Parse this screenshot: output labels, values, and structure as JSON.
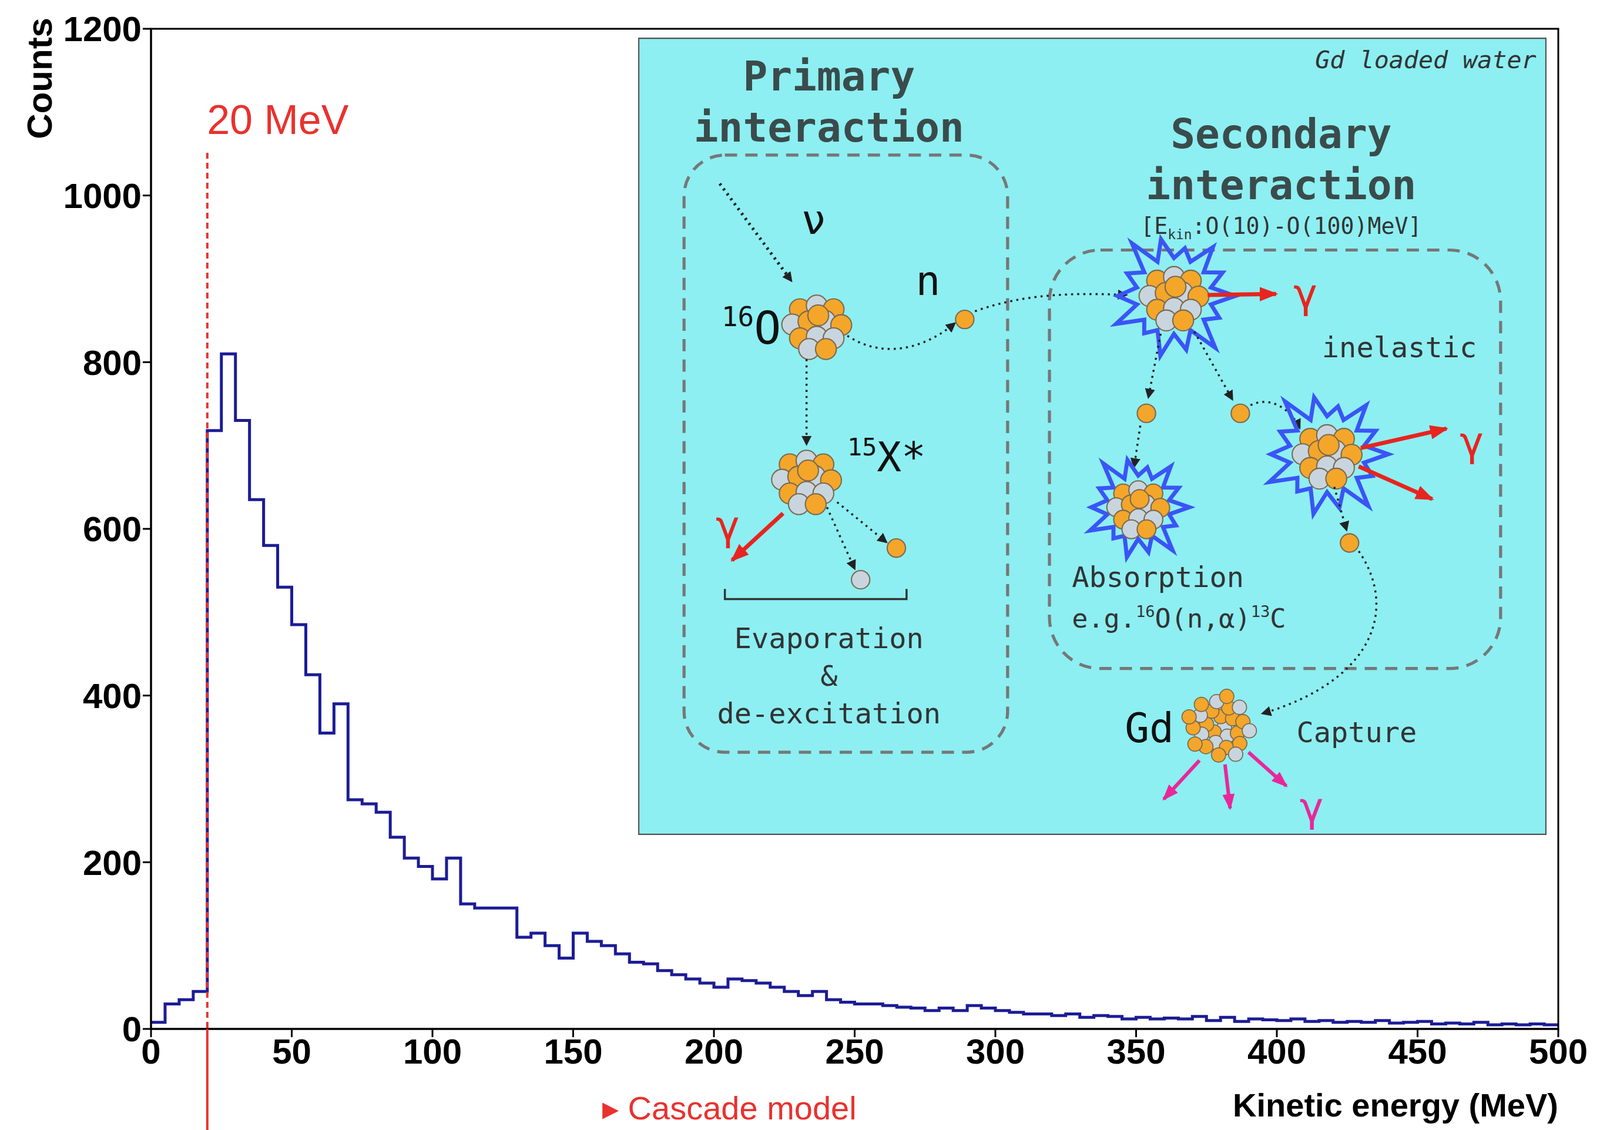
{
  "chart_data": {
    "type": "histogram",
    "xlabel": "Kinetic energy (MeV)",
    "ylabel": "Counts",
    "color": "#1c1c96",
    "grid": false,
    "bins": [
      0,
      5,
      10,
      15,
      20,
      25,
      30,
      35,
      40,
      45,
      50,
      55,
      60,
      65,
      70,
      75,
      80,
      85,
      90,
      95,
      100,
      105,
      110,
      115,
      120,
      125,
      130,
      135,
      140,
      145,
      150,
      155,
      160,
      165,
      170,
      175,
      180,
      185,
      190,
      195,
      200,
      205,
      210,
      215,
      220,
      225,
      230,
      235,
      240,
      245,
      250,
      255,
      260,
      265,
      270,
      275,
      280,
      285,
      290,
      295,
      300,
      305,
      310,
      315,
      320,
      325,
      330,
      335,
      340,
      345,
      350,
      355,
      360,
      365,
      370,
      375,
      380,
      385,
      390,
      395,
      400,
      405,
      410,
      415,
      420,
      425,
      430,
      435,
      440,
      445,
      450,
      455,
      460,
      465,
      470,
      475,
      480,
      485,
      490,
      495,
      500
    ],
    "values": [
      8,
      30,
      35,
      45,
      718,
      810,
      730,
      635,
      580,
      530,
      485,
      425,
      355,
      390,
      275,
      270,
      260,
      230,
      205,
      195,
      180,
      205,
      150,
      145,
      145,
      145,
      110,
      115,
      100,
      85,
      115,
      105,
      100,
      90,
      80,
      78,
      70,
      65,
      60,
      55,
      50,
      60,
      58,
      55,
      50,
      45,
      40,
      45,
      35,
      32,
      30,
      30,
      28,
      26,
      25,
      22,
      25,
      22,
      28,
      25,
      22,
      20,
      18,
      18,
      16,
      18,
      14,
      16,
      15,
      12,
      14,
      12,
      13,
      12,
      15,
      10,
      14,
      9,
      12,
      11,
      10,
      12,
      9,
      10,
      8,
      9,
      8,
      10,
      7,
      8,
      9,
      6,
      7,
      6,
      8,
      5,
      6,
      5,
      6,
      5
    ],
    "xlim": [
      0,
      500
    ],
    "ylim": [
      0,
      1200
    ],
    "xticks": [
      0,
      50,
      100,
      150,
      200,
      250,
      300,
      350,
      400,
      450,
      500
    ],
    "yticks": [
      0,
      200,
      400,
      600,
      800,
      1000,
      1200
    ],
    "annotations": [
      {
        "x": 20,
        "text": "20 MeV",
        "color": "#e8322e"
      },
      {
        "text": "▸ Cascade model",
        "color": "#e8322e"
      }
    ]
  },
  "inset": {
    "corner_label": "Gd loaded water",
    "primary_title": [
      "Primary",
      "interaction"
    ],
    "secondary_title": [
      "Secondary",
      "interaction"
    ],
    "energy_range": [
      {
        "t": "[E"
      },
      {
        "sub": "kin"
      },
      {
        "t": ":O(10)-O(100)MeV]"
      }
    ],
    "neutrino": "ν",
    "neutron": "n",
    "target": [
      {
        "sup": "16"
      },
      {
        "t": "O"
      }
    ],
    "residual": [
      {
        "sup": "15"
      },
      {
        "t": "X*"
      }
    ],
    "gamma": "γ",
    "evaporation": [
      "Evaporation",
      "&",
      "de-excitation"
    ],
    "inelastic": "inelastic",
    "absorption": "Absorption",
    "absorption_example": [
      {
        "t": "e.g."
      },
      {
        "sup": "16"
      },
      {
        "t": "O(n,α)"
      },
      {
        "sup": "13"
      },
      {
        "t": "C"
      }
    ],
    "capture_nucleus": "Gd",
    "capture": "Capture"
  }
}
